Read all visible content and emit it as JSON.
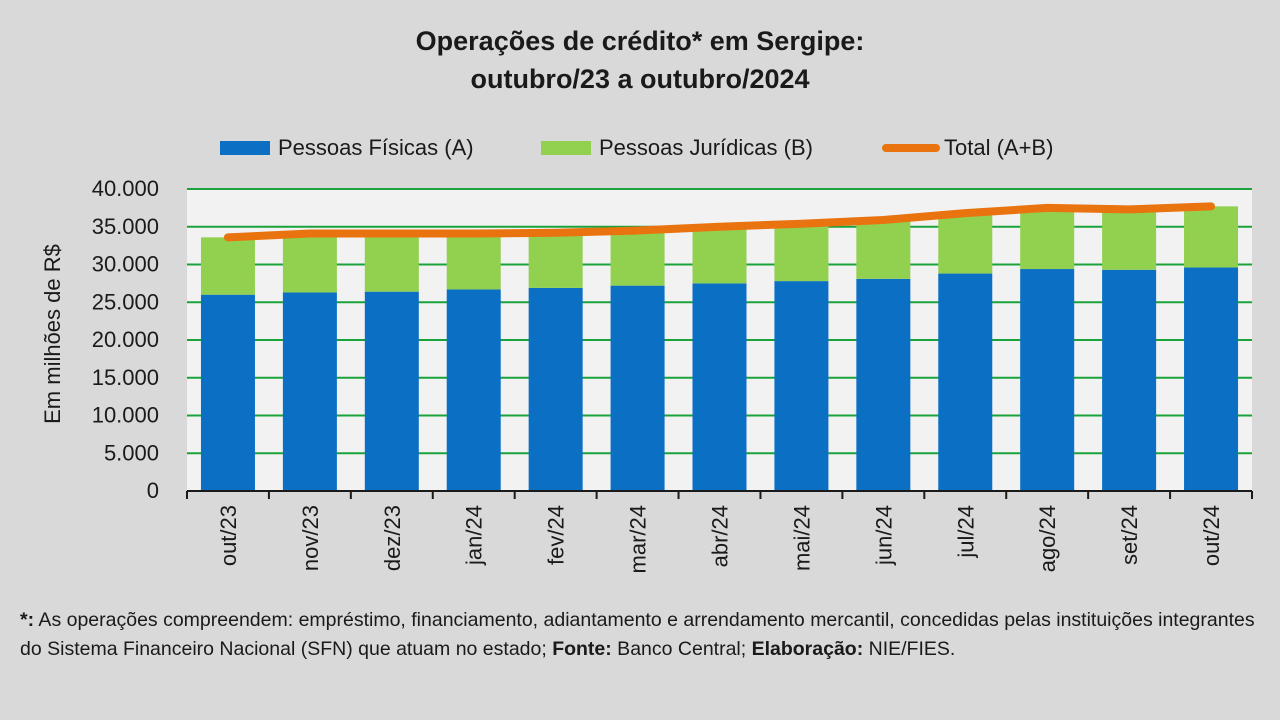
{
  "chart_data": {
    "type": "bar",
    "stacked": true,
    "title_line1": "Operações de crédito* em Sergipe:",
    "title_line2": "outubro/23 a outubro/2024",
    "ylabel": "Em milhões de R$",
    "ylim": [
      0,
      40000
    ],
    "yticks": [
      "0",
      "5.000",
      "10.000",
      "15.000",
      "20.000",
      "25.000",
      "30.000",
      "35.000",
      "40.000"
    ],
    "ytick_values": [
      0,
      5000,
      10000,
      15000,
      20000,
      25000,
      30000,
      35000,
      40000
    ],
    "grid": true,
    "legend_position": "top",
    "categories": [
      "out/23",
      "nov/23",
      "dez/23",
      "jan/24",
      "fev/24",
      "mar/24",
      "abr/24",
      "mai/24",
      "jun/24",
      "jul/24",
      "ago/24",
      "set/24",
      "out/24"
    ],
    "series": [
      {
        "name": "Pessoas Físicas (A)",
        "type": "bar",
        "color": "#0b6fc4",
        "values": [
          26000,
          26300,
          26400,
          26700,
          26900,
          27200,
          27500,
          27800,
          28100,
          28800,
          29400,
          29300,
          29600
        ]
      },
      {
        "name": "Pessoas Jurídicas (B)",
        "type": "bar",
        "color": "#92d050",
        "values": [
          7600,
          7800,
          7700,
          7400,
          7300,
          7300,
          7500,
          7600,
          7800,
          8000,
          8100,
          8000,
          8100
        ]
      },
      {
        "name": "Total (A+B)",
        "type": "line",
        "color": "#e9730f",
        "values": [
          33600,
          34100,
          34100,
          34100,
          34200,
          34500,
          35000,
          35400,
          35900,
          36800,
          37500,
          37300,
          37700
        ]
      }
    ]
  },
  "footnote": {
    "star": "*:",
    "text1": " As operações compreendem: empréstimo, financiamento, adiantamento e arrendamento mercantil, concedidas pelas instituições integrantes do Sistema Financeiro Nacional (SFN) que atuam no estado; ",
    "fonte_label": "Fonte:",
    "fonte_value": " Banco Central; ",
    "elab_label": "Elaboração:",
    "elab_value": "  NIE/FIES."
  }
}
